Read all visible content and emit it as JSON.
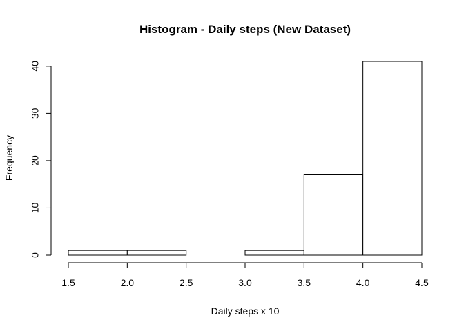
{
  "chart_data": {
    "type": "bar",
    "title": "Histogram - Daily steps (New Dataset)",
    "xlabel": "Daily steps x 10",
    "ylabel": "Frequency",
    "bins": [
      {
        "start": 1.5,
        "end": 2.0,
        "count": 1
      },
      {
        "start": 2.0,
        "end": 2.5,
        "count": 1
      },
      {
        "start": 2.5,
        "end": 3.0,
        "count": 0
      },
      {
        "start": 3.0,
        "end": 3.5,
        "count": 1
      },
      {
        "start": 3.5,
        "end": 4.0,
        "count": 17
      },
      {
        "start": 4.0,
        "end": 4.5,
        "count": 41
      }
    ],
    "xlim": [
      1.5,
      4.5
    ],
    "ylim": [
      0,
      41
    ],
    "x_ticks": [
      "1.5",
      "2.0",
      "2.5",
      "3.0",
      "3.5",
      "4.0",
      "4.5"
    ],
    "y_ticks": [
      "0",
      "10",
      "20",
      "30",
      "40"
    ],
    "grid": false,
    "colors": {
      "bar_fill": "#ffffff",
      "bar_stroke": "#000000"
    }
  }
}
